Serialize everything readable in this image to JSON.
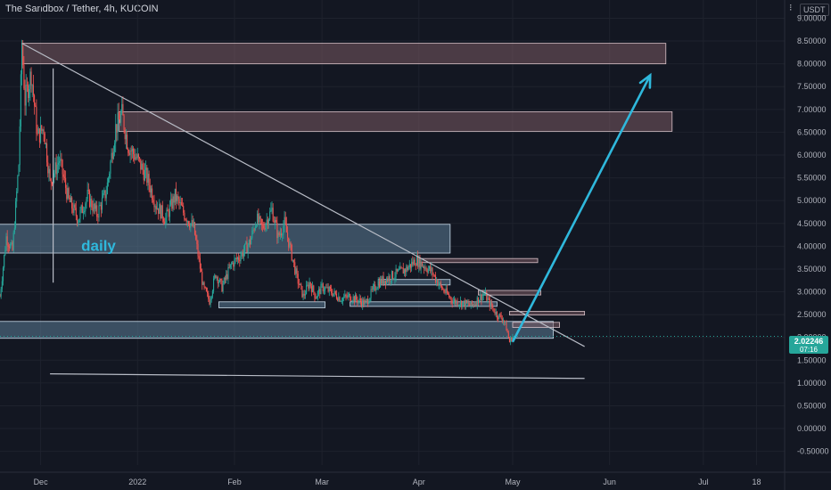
{
  "header": {
    "title": "The Sandbox / Tether, 4h, KUCOIN",
    "unit": "USDT",
    "menu": "⁝"
  },
  "price_tag": {
    "price": "2.02246",
    "countdown": "07:16",
    "color": "#26a69a"
  },
  "colors": {
    "background": "#131722",
    "up": "#26a69a",
    "down": "#ef5350",
    "zone_pink": "#7a5a63",
    "zone_blue": "#5d7d97",
    "trendline": "#b8bcc6",
    "arrow": "#2fb8dc",
    "annotation": "#2fb8dc"
  },
  "chart_data": {
    "type": "candlestick",
    "title": "The Sandbox / Tether, 4h, KUCOIN",
    "y_axis": {
      "ticks": [
        "9.00000",
        "8.50000",
        "8.00000",
        "7.50000",
        "7.00000",
        "6.50000",
        "6.00000",
        "5.50000",
        "5.00000",
        "4.50000",
        "4.00000",
        "3.50000",
        "3.00000",
        "2.50000",
        "2.00000",
        "1.50000",
        "1.00000",
        "0.50000",
        "0.00000",
        "-0.50000"
      ],
      "range": [
        -0.8,
        9.4
      ],
      "unit": "USDT"
    },
    "x_axis": {
      "ticks": [
        "Dec",
        "2022",
        "Feb",
        "Mar",
        "Apr",
        "May",
        "Jun",
        "Jul",
        "18"
      ],
      "tick_dates": [
        "2021-12-01",
        "2022-01-01",
        "2022-02-01",
        "2022-03-01",
        "2022-04-01",
        "2022-05-01",
        "2022-06-01",
        "2022-07-01",
        "2022-07-18"
      ],
      "range": [
        "2021-11-18",
        "2022-07-27"
      ]
    },
    "last_price": 2.02246,
    "price_path": [
      [
        "2021-11-18",
        2.9
      ],
      [
        "2021-11-20",
        4.2
      ],
      [
        "2021-11-22",
        3.9
      ],
      [
        "2021-11-24",
        5.8
      ],
      [
        "2021-11-25",
        8.4
      ],
      [
        "2021-11-26",
        7.2
      ],
      [
        "2021-11-28",
        7.8
      ],
      [
        "2021-11-30",
        6.4
      ],
      [
        "2021-12-02",
        6.6
      ],
      [
        "2021-12-04",
        5.4
      ],
      [
        "2021-12-07",
        5.9
      ],
      [
        "2021-12-10",
        5.0
      ],
      [
        "2021-12-13",
        4.6
      ],
      [
        "2021-12-16",
        5.1
      ],
      [
        "2021-12-19",
        4.7
      ],
      [
        "2021-12-22",
        5.2
      ],
      [
        "2021-12-25",
        6.6
      ],
      [
        "2021-12-27",
        6.9
      ],
      [
        "2021-12-29",
        6.2
      ],
      [
        "2022-01-01",
        5.9
      ],
      [
        "2022-01-04",
        5.5
      ],
      [
        "2022-01-07",
        4.9
      ],
      [
        "2022-01-10",
        4.6
      ],
      [
        "2022-01-13",
        5.1
      ],
      [
        "2022-01-16",
        4.7
      ],
      [
        "2022-01-19",
        4.4
      ],
      [
        "2022-01-22",
        3.1
      ],
      [
        "2022-01-24",
        2.8
      ],
      [
        "2022-01-26",
        3.4
      ],
      [
        "2022-01-28",
        3.1
      ],
      [
        "2022-01-31",
        3.6
      ],
      [
        "2022-02-03",
        3.8
      ],
      [
        "2022-02-06",
        4.1
      ],
      [
        "2022-02-08",
        4.6
      ],
      [
        "2022-02-10",
        4.4
      ],
      [
        "2022-02-13",
        4.8
      ],
      [
        "2022-02-15",
        4.2
      ],
      [
        "2022-02-17",
        4.5
      ],
      [
        "2022-02-19",
        3.9
      ],
      [
        "2022-02-21",
        3.3
      ],
      [
        "2022-02-23",
        2.9
      ],
      [
        "2022-02-25",
        3.2
      ],
      [
        "2022-02-27",
        2.9
      ],
      [
        "2022-03-01",
        3.1
      ],
      [
        "2022-03-04",
        3.0
      ],
      [
        "2022-03-07",
        2.85
      ],
      [
        "2022-03-10",
        2.9
      ],
      [
        "2022-03-13",
        2.8
      ],
      [
        "2022-03-15",
        2.75
      ],
      [
        "2022-03-17",
        3.0
      ],
      [
        "2022-03-19",
        3.2
      ],
      [
        "2022-03-22",
        3.3
      ],
      [
        "2022-03-25",
        3.4
      ],
      [
        "2022-03-28",
        3.5
      ],
      [
        "2022-03-31",
        3.7
      ],
      [
        "2022-04-02",
        3.6
      ],
      [
        "2022-04-05",
        3.45
      ],
      [
        "2022-04-08",
        3.1
      ],
      [
        "2022-04-10",
        2.95
      ],
      [
        "2022-04-12",
        2.8
      ],
      [
        "2022-04-15",
        2.75
      ],
      [
        "2022-04-18",
        2.7
      ],
      [
        "2022-04-20",
        2.85
      ],
      [
        "2022-04-22",
        2.95
      ],
      [
        "2022-04-24",
        2.7
      ],
      [
        "2022-04-26",
        2.5
      ],
      [
        "2022-04-28",
        2.4
      ],
      [
        "2022-04-29",
        2.2
      ],
      [
        "2022-04-30",
        1.9
      ],
      [
        "2022-05-01",
        2.02246
      ]
    ],
    "trendlines": [
      {
        "from": [
          "2021-11-25",
          8.45
        ],
        "to": [
          "2022-05-24",
          1.8
        ]
      },
      {
        "from": [
          "2021-12-04",
          1.2
        ],
        "to": [
          "2022-05-24",
          1.1
        ]
      },
      {
        "from": [
          "2021-12-05",
          3.2
        ],
        "to": [
          "2021-12-05",
          7.9
        ]
      }
    ],
    "zones": [
      {
        "from": "2021-11-25",
        "to": "2022-06-19",
        "top": 8.45,
        "bottom": 8.0,
        "color": "pink"
      },
      {
        "from": "2021-12-26",
        "to": "2022-06-21",
        "top": 6.95,
        "bottom": 6.52,
        "color": "pink"
      },
      {
        "from": "2021-11-17",
        "to": "2022-04-11",
        "top": 4.48,
        "bottom": 3.85,
        "color": "blue"
      },
      {
        "from": "2021-11-17",
        "to": "2022-05-14",
        "top": 2.35,
        "bottom": 1.98,
        "color": "blue"
      },
      {
        "from": "2022-01-27",
        "to": "2022-03-02",
        "top": 2.78,
        "bottom": 2.65,
        "color": "blue"
      },
      {
        "from": "2022-03-10",
        "to": "2022-04-26",
        "top": 2.78,
        "bottom": 2.68,
        "color": "blue"
      },
      {
        "from": "2022-03-19",
        "to": "2022-04-11",
        "top": 3.27,
        "bottom": 3.15,
        "color": "blue"
      },
      {
        "from": "2022-04-01",
        "to": "2022-05-09",
        "top": 3.73,
        "bottom": 3.64,
        "color": "pink"
      },
      {
        "from": "2022-04-20",
        "to": "2022-05-10",
        "top": 3.03,
        "bottom": 2.93,
        "color": "pink"
      },
      {
        "from": "2022-04-30",
        "to": "2022-05-24",
        "top": 2.57,
        "bottom": 2.49,
        "color": "pink"
      },
      {
        "from": "2022-05-01",
        "to": "2022-05-16",
        "top": 2.33,
        "bottom": 2.22,
        "color": "pink"
      }
    ],
    "arrow": {
      "from": [
        "2022-05-01",
        1.9
      ],
      "to": [
        "2022-06-14",
        7.75
      ]
    },
    "annotations": [
      {
        "text": "daily",
        "at": [
          "2021-12-14",
          4.02
        ]
      }
    ]
  }
}
